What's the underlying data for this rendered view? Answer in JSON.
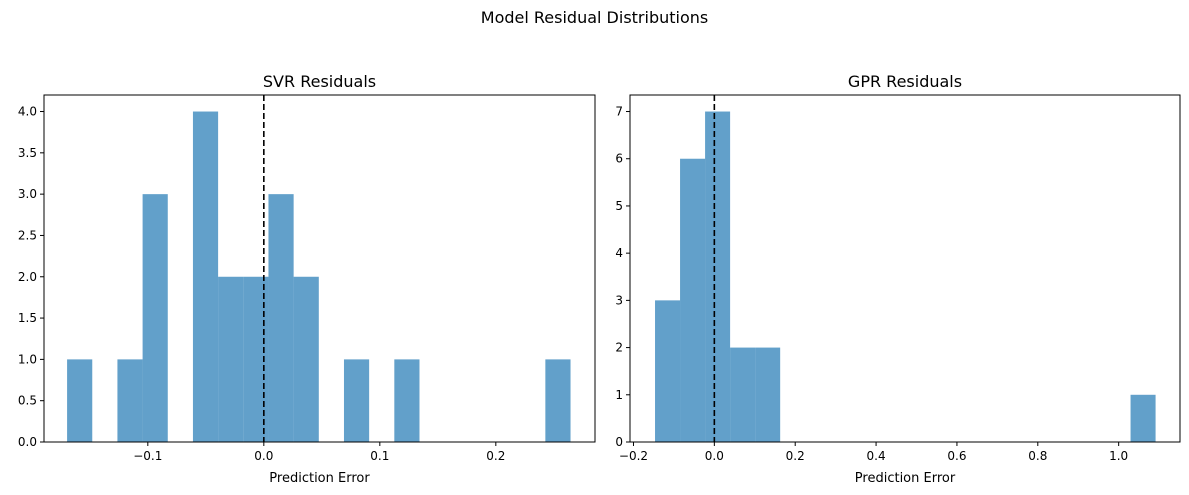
{
  "figure": {
    "title": "Model Residual Distributions"
  },
  "chart_data": [
    {
      "type": "bar",
      "title": "SVR Residuals",
      "xlabel": "Prediction Error",
      "ylabel": "",
      "xlim": [
        -0.1895,
        0.2855
      ],
      "ylim": [
        0,
        4.2
      ],
      "xticks": [
        -0.1,
        0.0,
        0.1,
        0.2
      ],
      "xtick_labels": [
        "−0.1",
        "0.0",
        "0.1",
        "0.2"
      ],
      "yticks": [
        0,
        0.5,
        1.0,
        1.5,
        2.0,
        2.5,
        3.0,
        3.5,
        4.0
      ],
      "ytick_labels": [
        "0.0",
        "0.5",
        "1.0",
        "1.5",
        "2.0",
        "2.5",
        "3.0",
        "3.5",
        "4.0"
      ],
      "bins": [
        -0.1696,
        -0.1479,
        -0.1262,
        -0.1045,
        -0.0828,
        -0.0611,
        -0.0394,
        -0.0177,
        0.004,
        0.0257,
        0.0474,
        0.0691,
        0.0908,
        0.1125,
        0.1342,
        0.1559,
        0.1776,
        0.1993,
        0.221,
        0.2427,
        0.2644
      ],
      "counts": [
        1,
        0,
        1,
        3,
        0,
        4,
        2,
        2,
        3,
        2,
        0,
        1,
        0,
        1,
        0,
        0,
        0,
        0,
        0,
        1
      ],
      "bar_color": "#1f77b4",
      "bar_opacity": 0.7,
      "vline": {
        "x": 0,
        "style": "dashed",
        "color": "#000000"
      },
      "grid": false
    },
    {
      "type": "bar",
      "title": "GPR Residuals",
      "xlabel": "Prediction Error",
      "ylabel": "",
      "xlim": [
        -0.2086,
        1.1517
      ],
      "ylim": [
        0,
        7.35
      ],
      "xticks": [
        -0.2,
        0.0,
        0.2,
        0.4,
        0.6,
        0.8,
        1.0
      ],
      "xtick_labels": [
        "−0.2",
        "0.0",
        "0.2",
        "0.4",
        "0.6",
        "0.8",
        "1.0"
      ],
      "yticks": [
        0,
        1,
        2,
        3,
        4,
        5,
        6,
        7
      ],
      "ytick_labels": [
        "0",
        "1",
        "2",
        "3",
        "4",
        "5",
        "6",
        "7"
      ],
      "bins": [
        -0.1467,
        -0.0848,
        -0.0229,
        0.039,
        0.1009,
        0.1628,
        0.2247,
        0.2866,
        0.3485,
        0.4104,
        0.4723,
        0.5342,
        0.5961,
        0.658,
        0.7199,
        0.7818,
        0.8437,
        0.9056,
        0.9675,
        1.0294,
        1.0913
      ],
      "counts": [
        3,
        6,
        7,
        2,
        2,
        0,
        0,
        0,
        0,
        0,
        0,
        0,
        0,
        0,
        0,
        0,
        0,
        0,
        0,
        1
      ],
      "bar_color": "#1f77b4",
      "bar_opacity": 0.7,
      "vline": {
        "x": 0,
        "style": "dashed",
        "color": "#000000"
      },
      "grid": false
    }
  ]
}
